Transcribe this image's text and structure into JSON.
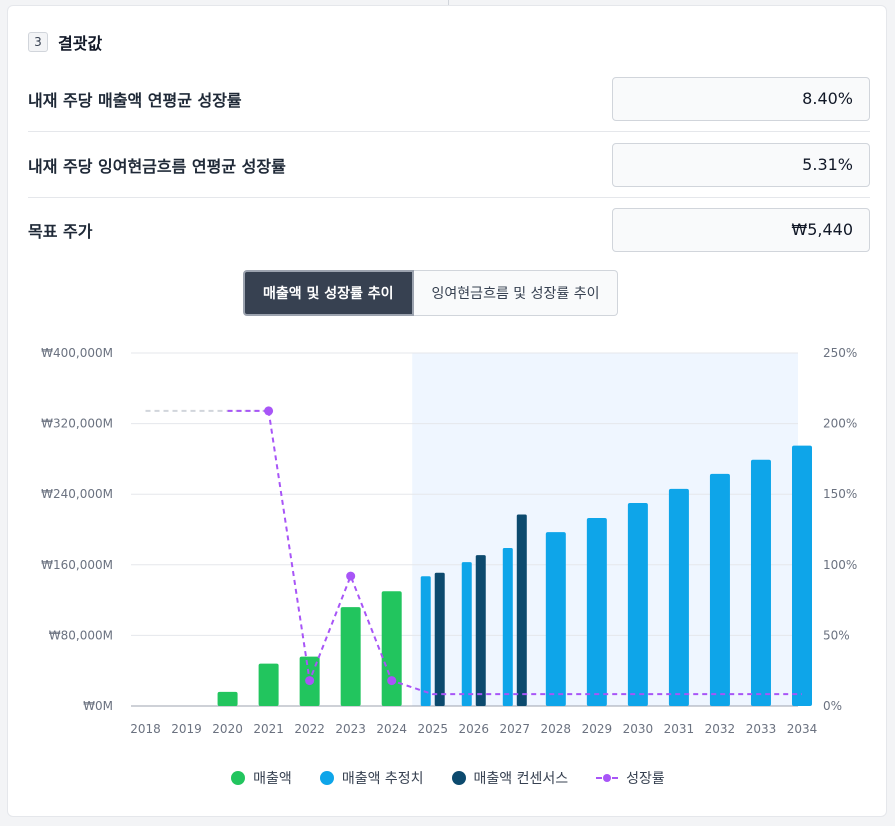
{
  "section": {
    "number": "3",
    "title": "결괏값"
  },
  "results": [
    {
      "label": "내재 주당 매출액 연평균 성장률",
      "value": "8.40%"
    },
    {
      "label": "내재 주당 잉여현금흐름 연평균 성장률",
      "value": "5.31%"
    },
    {
      "label": "목표 주가",
      "value": "₩5,440"
    }
  ],
  "tabs": {
    "active": "매출액 및 성장률 추이",
    "inactive": "잉여현금흐름 및 성장률 추이"
  },
  "colors": {
    "actual": "#22c55e",
    "estimate": "#0ea5e9",
    "consensus": "#0c4a6e",
    "growth": "#a855f7",
    "forecast_bg": "#eff6ff"
  },
  "chart_data": {
    "type": "bar",
    "categories": [
      "2018",
      "2019",
      "2020",
      "2021",
      "2022",
      "2023",
      "2024",
      "2025",
      "2026",
      "2027",
      "2028",
      "2029",
      "2030",
      "2031",
      "2032",
      "2033",
      "2034"
    ],
    "y_left_ticks": [
      "₩0M",
      "₩80,000M",
      "₩160,000M",
      "₩240,000M",
      "₩320,000M",
      "₩400,000M"
    ],
    "y_right_ticks": [
      "0%",
      "50%",
      "100%",
      "150%",
      "200%",
      "250%"
    ],
    "ylim_left": [
      0,
      400000
    ],
    "ylim_right": [
      0,
      250
    ],
    "forecast_start": "2025",
    "series": [
      {
        "name": "매출액",
        "values": [
          0,
          0,
          16000,
          48000,
          56000,
          112000,
          130000,
          null,
          null,
          null,
          null,
          null,
          null,
          null,
          null,
          null,
          null
        ]
      },
      {
        "name": "매출액 추정치",
        "values": [
          null,
          null,
          null,
          null,
          null,
          null,
          null,
          147000,
          163000,
          179000,
          197000,
          213000,
          230000,
          246000,
          263000,
          279000,
          295000
        ]
      },
      {
        "name": "매출액 컨센서스",
        "values": [
          null,
          null,
          null,
          null,
          null,
          null,
          null,
          151000,
          171000,
          217000,
          null,
          null,
          null,
          null,
          null,
          null,
          null
        ]
      },
      {
        "name": "성장률",
        "values": [
          null,
          null,
          null,
          209,
          18,
          92,
          18,
          8.4,
          8.4,
          8.4,
          8.4,
          8.4,
          8.4,
          8.4,
          8.4,
          8.4,
          8.4
        ]
      }
    ],
    "growth_placeholder_years": [
      "2018",
      "2019",
      "2020"
    ]
  },
  "legend": [
    "매출액",
    "매출액 추정치",
    "매출액 컨센서스",
    "성장률"
  ]
}
